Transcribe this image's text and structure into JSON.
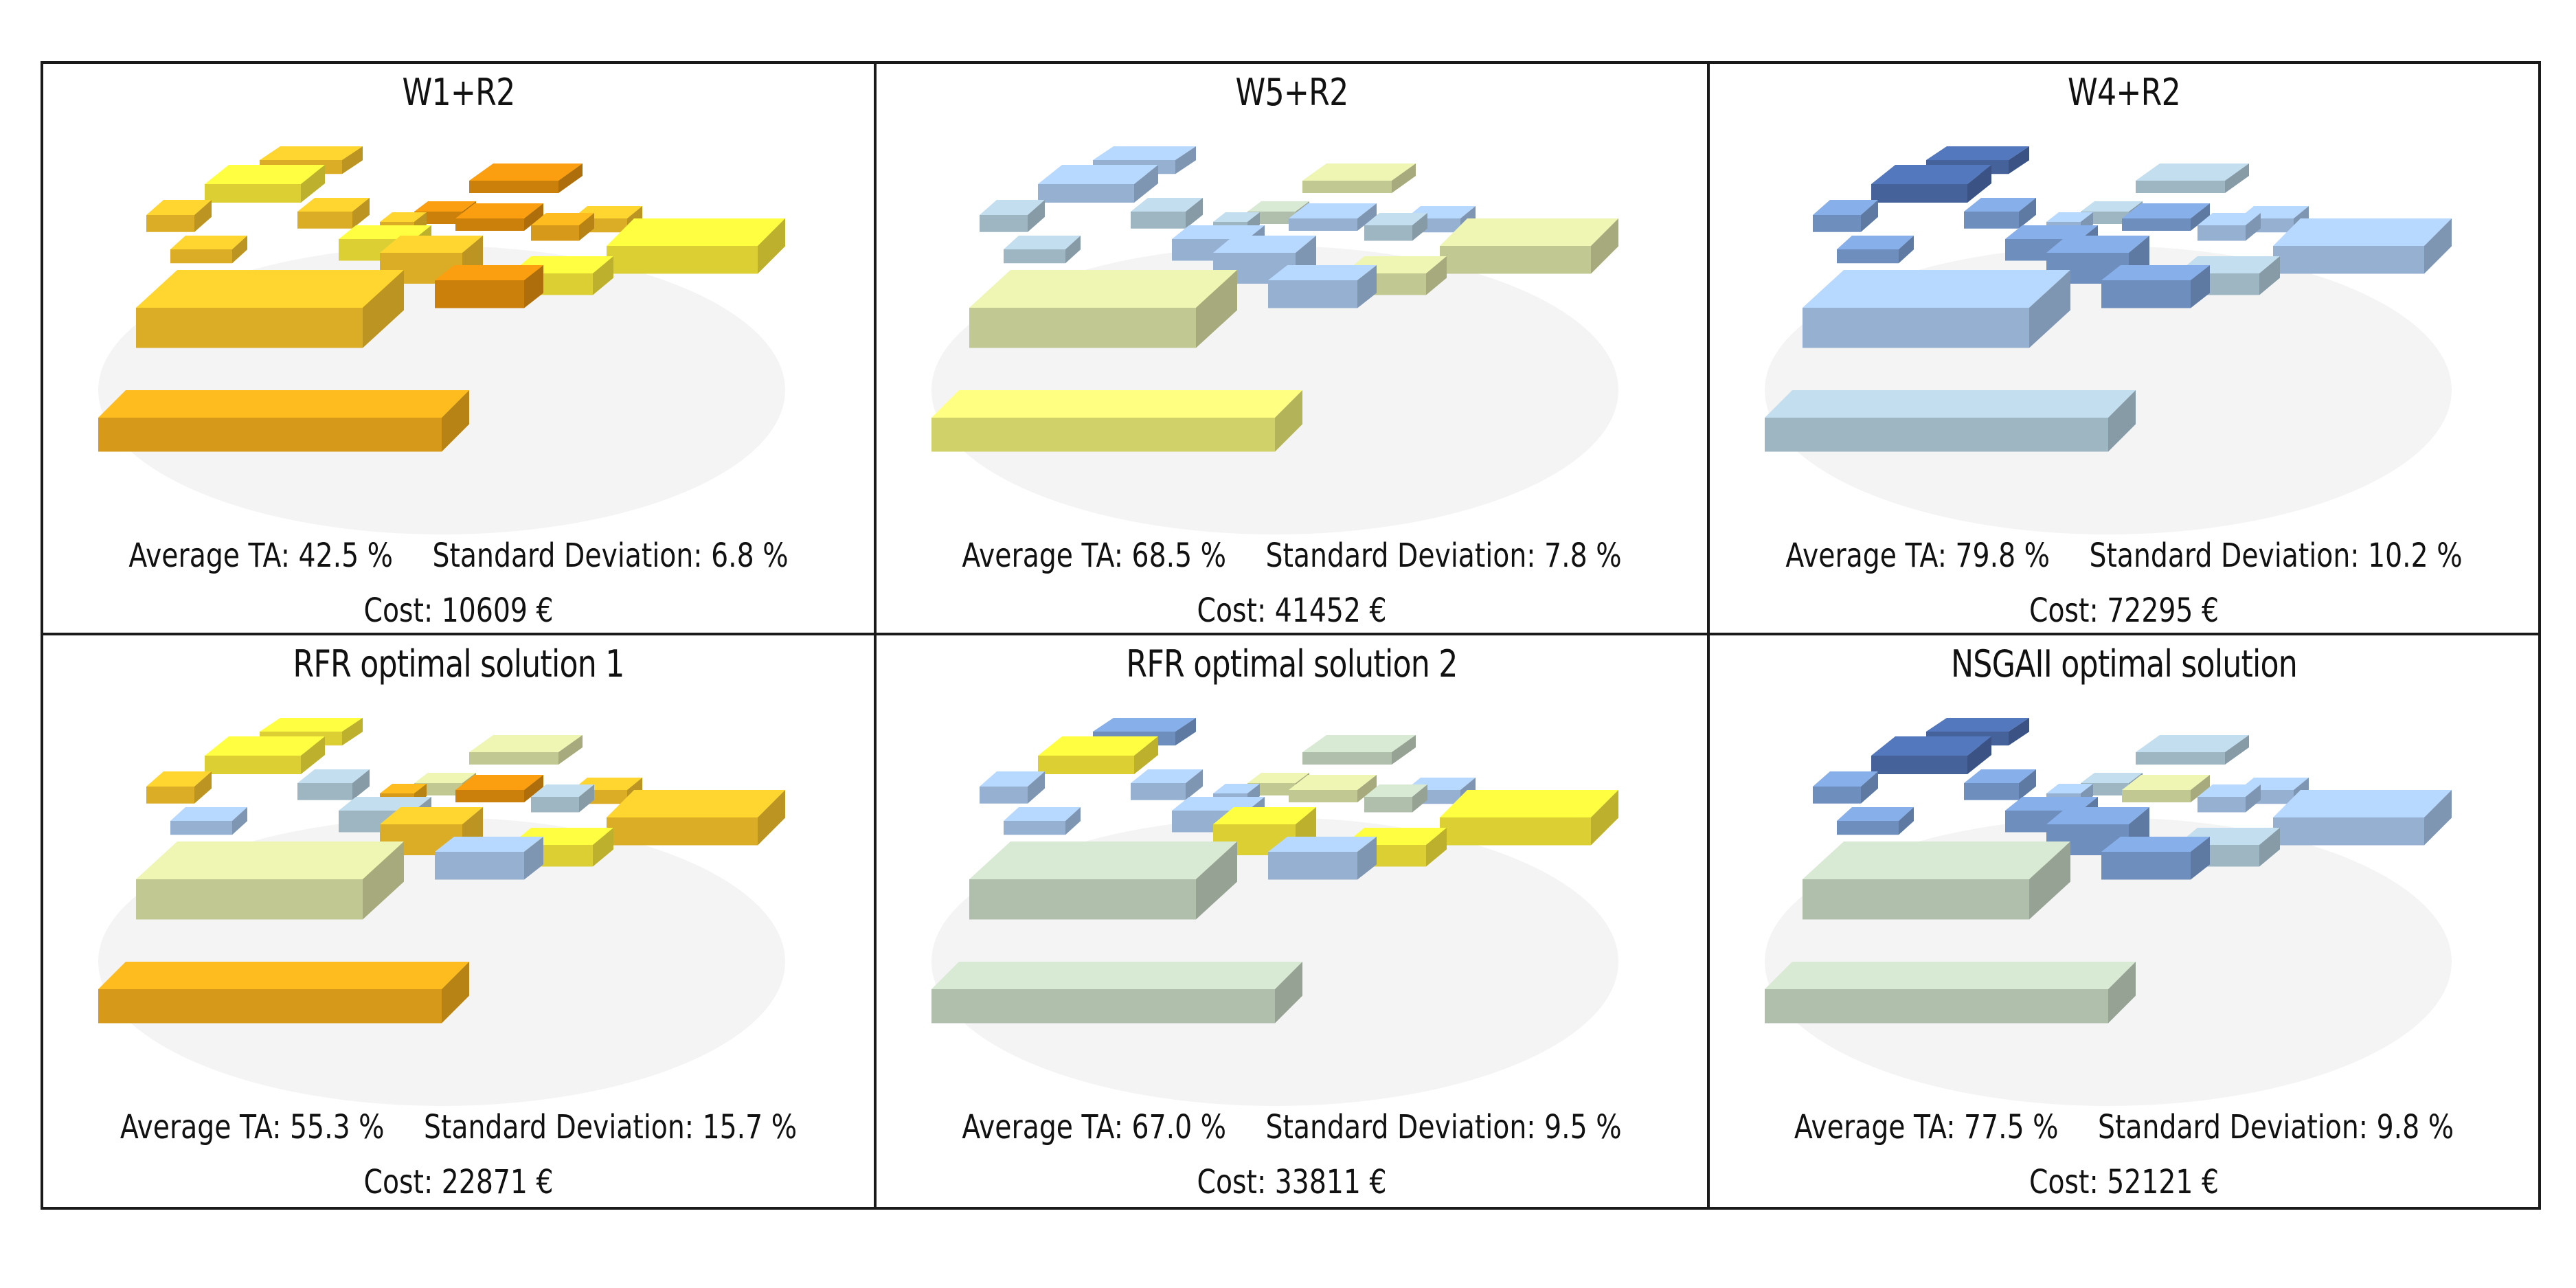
{
  "colors": {
    "deep_orange": "#E8920E",
    "orange": "#F4AE1C",
    "amber": "#F9C52C",
    "yellow": "#FAEB3B",
    "pale_yellow": "#EEEE77",
    "lime": "#DDE3A5",
    "sage": "#C8D8C4",
    "light_blue": "#A9C8EE",
    "blue_grey": "#B4CEDD",
    "mid_blue": "#7DA2D8",
    "dark_blue": "#4E6FB0",
    "border": "#1A1A1A"
  },
  "panels": [
    {
      "title": "W1+R2",
      "average": "Average TA: 42.5 %",
      "deviation": "Standard Deviation: 6.8 %",
      "cost": "Cost: 10609 €",
      "palette": [
        "orange",
        "amber",
        "amber",
        "yellow",
        "amber",
        "amber",
        "deep_orange",
        "deep_orange",
        "amber",
        "deep_orange",
        "yellow",
        "amber",
        "amber",
        "deep_orange",
        "orange",
        "yellow",
        "amber",
        "yellow",
        "deep_orange"
      ]
    },
    {
      "title": "W5+R2",
      "average": "Average TA: 68.5 %",
      "deviation": "Standard Deviation: 7.8 %",
      "cost": "Cost: 41452 €",
      "palette": [
        "pale_yellow",
        "lime",
        "blue_grey",
        "light_blue",
        "blue_grey",
        "light_blue",
        "lime",
        "light_blue",
        "blue_grey",
        "pale_yellow",
        "light_blue",
        "blue_grey",
        "light_blue",
        "sage",
        "blue_grey",
        "lime",
        "light_blue",
        "lime",
        "light_blue"
      ]
    },
    {
      "title": "W4+R2",
      "average": "Average TA: 79.8 %",
      "deviation": "Standard Deviation: 10.2 %",
      "cost": "Cost: 72295 €",
      "palette": [
        "blue_grey",
        "light_blue",
        "mid_blue",
        "dark_blue",
        "mid_blue",
        "dark_blue",
        "blue_grey",
        "mid_blue",
        "mid_blue",
        "lime",
        "mid_blue",
        "light_blue",
        "mid_blue",
        "blue_grey",
        "light_blue",
        "blue_grey",
        "light_blue",
        "light_blue",
        "mid_blue"
      ]
    },
    {
      "title": "RFR optimal solution 1",
      "average": "Average TA: 55.3 %",
      "deviation": "Standard Deviation: 15.7 %",
      "cost": "Cost: 22871 €",
      "palette": [
        "orange",
        "lime",
        "amber",
        "yellow",
        "light_blue",
        "yellow",
        "lime",
        "deep_orange",
        "blue_grey",
        "pale_yellow",
        "blue_grey",
        "orange",
        "amber",
        "lime",
        "blue_grey",
        "yellow",
        "amber",
        "amber",
        "light_blue"
      ]
    },
    {
      "title": "RFR optimal solution 2",
      "average": "Average TA: 67.0 %",
      "deviation": "Standard Deviation: 9.5 %",
      "cost": "Cost: 33811 €",
      "palette": [
        "sage",
        "sage",
        "light_blue",
        "yellow",
        "light_blue",
        "mid_blue",
        "sage",
        "lime",
        "light_blue",
        "lime",
        "light_blue",
        "light_blue",
        "yellow",
        "lime",
        "sage",
        "yellow",
        "light_blue",
        "yellow",
        "light_blue"
      ]
    },
    {
      "title": "NSGAII optimal solution",
      "average": "Average TA: 77.5 %",
      "deviation": "Standard Deviation: 9.8 %",
      "cost": "Cost: 52121 €",
      "palette": [
        "sage",
        "sage",
        "mid_blue",
        "dark_blue",
        "mid_blue",
        "dark_blue",
        "blue_grey",
        "lime",
        "mid_blue",
        "lime",
        "mid_blue",
        "light_blue",
        "mid_blue",
        "blue_grey",
        "light_blue",
        "blue_grey",
        "light_blue",
        "light_blue",
        "mid_blue"
      ]
    }
  ]
}
